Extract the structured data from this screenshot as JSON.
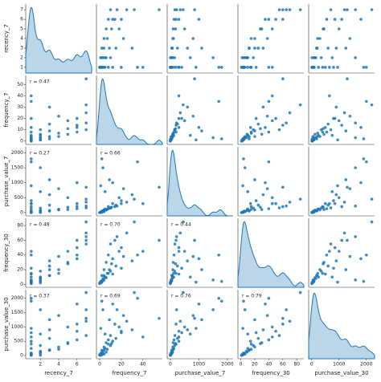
{
  "chart_data": {
    "type": "pairplot",
    "color": "#1f77b4",
    "variables": [
      {
        "name": "recency_7",
        "lim": [
          0.4,
          7.6
        ],
        "xticks": [
          2,
          4,
          6
        ],
        "yticks": [
          1,
          2,
          3,
          4,
          5,
          6,
          7
        ],
        "values": [
          1,
          1,
          1,
          2,
          2,
          1,
          3,
          1,
          4,
          2,
          1,
          5,
          3,
          6,
          7,
          1,
          2,
          1,
          7,
          5,
          3,
          6,
          7,
          1,
          4,
          2,
          1,
          7,
          3,
          6,
          1,
          2,
          1,
          4,
          5,
          1,
          2,
          1,
          3,
          7,
          6,
          1
        ]
      },
      {
        "name": "frequency_7",
        "lim": [
          -3,
          58
        ],
        "xticks": [
          0,
          20,
          40
        ],
        "yticks": [
          0,
          10,
          20,
          30,
          40,
          50
        ],
        "values": [
          1,
          2,
          0,
          3,
          1,
          5,
          2,
          8,
          4,
          10,
          12,
          6,
          15,
          8,
          10,
          20,
          3,
          2,
          25,
          18,
          30,
          14,
          32,
          1,
          22,
          5,
          40,
          55,
          9,
          20,
          4,
          6,
          2,
          7,
          11,
          3,
          1,
          0,
          4,
          16,
          12,
          35
        ]
      },
      {
        "name": "purchase_value_7",
        "lim": [
          -110,
          2200
        ],
        "xticks": [
          0,
          1000,
          2000
        ],
        "yticks": [
          0,
          500,
          1000,
          1500,
          2000
        ],
        "values": [
          20,
          40,
          0,
          60,
          15,
          120,
          50,
          200,
          90,
          150,
          300,
          100,
          250,
          130,
          160,
          400,
          1500,
          1800,
          350,
          500,
          600,
          200,
          450,
          900,
          800,
          700,
          300,
          850,
          1100,
          300,
          30,
          80,
          10,
          110,
          180,
          50,
          5,
          0,
          70,
          220,
          1000,
          1700
        ]
      },
      {
        "name": "frequency_30",
        "lim": [
          -4,
          90
        ],
        "xticks": [
          0,
          20,
          40,
          60,
          80
        ],
        "yticks": [
          0,
          20,
          40,
          60,
          80
        ],
        "values": [
          3,
          5,
          2,
          8,
          4,
          10,
          12,
          15,
          20,
          18,
          14,
          30,
          25,
          40,
          55,
          22,
          6,
          4,
          70,
          45,
          32,
          60,
          85,
          3,
          38,
          10,
          45,
          60,
          20,
          50,
          6,
          9,
          3,
          15,
          28,
          5,
          2,
          1,
          12,
          65,
          35,
          40
        ]
      },
      {
        "name": "purchase_value_30",
        "lim": [
          -110,
          2300
        ],
        "xticks": [
          0,
          1000,
          2000
        ],
        "yticks": [
          0,
          500,
          1000,
          1500,
          2000
        ],
        "values": [
          60,
          90,
          30,
          150,
          80,
          250,
          180,
          400,
          300,
          350,
          500,
          450,
          600,
          550,
          700,
          800,
          1600,
          1900,
          1200,
          1000,
          900,
          1100,
          2200,
          950,
          1400,
          750,
          650,
          1300,
          1250,
          850,
          50,
          120,
          25,
          220,
          420,
          70,
          12,
          8,
          200,
          1600,
          1800,
          2000
        ]
      }
    ],
    "correlations": [
      [],
      [
        "r = 0.47"
      ],
      [
        "r = 0.27",
        "r = 0.66"
      ],
      [
        "r = 0.48",
        "r = 0.70",
        "r = 0.44"
      ],
      [
        "r = 0.37",
        "r = 0.69",
        "r = 0.76",
        "r = 0.79"
      ]
    ]
  }
}
